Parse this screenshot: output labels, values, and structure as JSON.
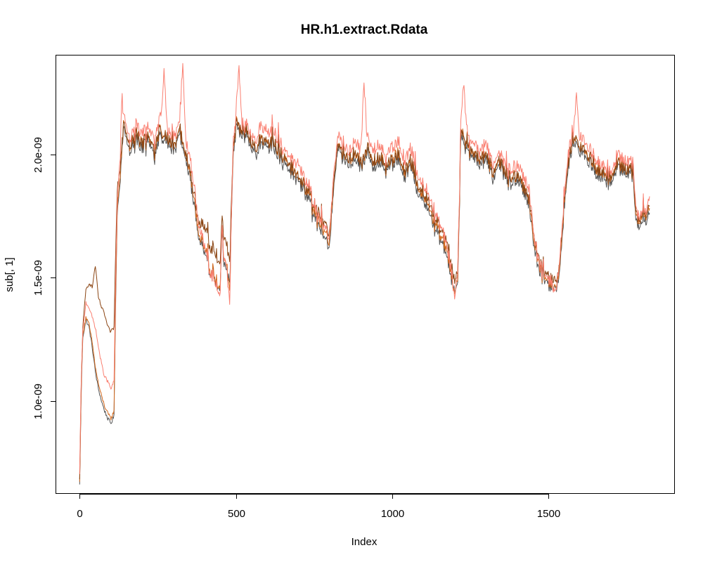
{
  "chart_data": {
    "type": "line",
    "title": "HR.h1.extract.Rdata",
    "xlabel": "Index",
    "ylabel": "sub[, 1]",
    "xlim": [
      -75,
      1905
    ],
    "ylim": [
      6.25e-10,
      2.4e-09
    ],
    "x_ticks": [
      0,
      500,
      1000,
      1500
    ],
    "x_tick_labels": [
      "0",
      "500",
      "1000",
      "1500"
    ],
    "y_ticks": [
      1e-09,
      1.5e-09,
      2e-09
    ],
    "y_tick_labels": [
      "1.0e-09",
      "1.5e-09",
      "2.0e-09"
    ],
    "grid": false,
    "legend": "none",
    "n_points": 1826,
    "series": [
      {
        "color": "#555555",
        "x": [
          0,
          5,
          10,
          20,
          30,
          40,
          50,
          60,
          70,
          80,
          90,
          100,
          110,
          115,
          120,
          130,
          140,
          150,
          160,
          180,
          200,
          220,
          240,
          260,
          280,
          300,
          320,
          330,
          340,
          350,
          360,
          370,
          380,
          390,
          400,
          410,
          420,
          430,
          440,
          450,
          455,
          460,
          470,
          480,
          490,
          500,
          520,
          540,
          560,
          580,
          600,
          620,
          640,
          660,
          680,
          700,
          720,
          740,
          760,
          780,
          800,
          810,
          820,
          830,
          840,
          860,
          880,
          900,
          920,
          940,
          960,
          980,
          1000,
          1020,
          1040,
          1060,
          1080,
          1100,
          1120,
          1140,
          1160,
          1180,
          1190,
          1200,
          1210,
          1215,
          1220,
          1240,
          1260,
          1280,
          1300,
          1320,
          1340,
          1360,
          1380,
          1400,
          1420,
          1440,
          1450,
          1460,
          1470,
          1480,
          1490,
          1500,
          1510,
          1520,
          1530,
          1540,
          1550,
          1560,
          1580,
          1600,
          1620,
          1640,
          1660,
          1680,
          1700,
          1720,
          1740,
          1750,
          1760,
          1770,
          1780,
          1790,
          1800,
          1810,
          1820,
          1825
        ],
        "y": [
          6.6e-10,
          1.05e-09,
          1.26e-09,
          1.33e-09,
          1.3e-09,
          1.22e-09,
          1.12e-09,
          1.05e-09,
          1e-09,
          9.6e-10,
          9.3e-10,
          9.1e-10,
          9.4e-10,
          1.4e-09,
          1.75e-09,
          1.9e-09,
          2.1e-09,
          2.05e-09,
          2e-09,
          2.06e-09,
          2.02e-09,
          2.05e-09,
          1.98e-09,
          2.08e-09,
          2.05e-09,
          2.02e-09,
          2.1e-09,
          2e-09,
          1.98e-09,
          1.92e-09,
          1.85e-09,
          1.75e-09,
          1.67e-09,
          1.64e-09,
          1.6e-09,
          1.55e-09,
          1.52e-09,
          1.49e-09,
          1.47e-09,
          1.44e-09,
          1.7e-09,
          1.58e-09,
          1.54e-09,
          1.46e-09,
          1.95e-09,
          2.1e-09,
          2.08e-09,
          2.05e-09,
          2e-09,
          2.05e-09,
          2.02e-09,
          2.03e-09,
          1.98e-09,
          1.95e-09,
          1.92e-09,
          1.88e-09,
          1.85e-09,
          1.8e-09,
          1.72e-09,
          1.66e-09,
          1.62e-09,
          1.82e-09,
          1.95e-09,
          2.02e-09,
          1.98e-09,
          1.95e-09,
          1.98e-09,
          1.95e-09,
          2e-09,
          1.95e-09,
          1.98e-09,
          1.92e-09,
          1.95e-09,
          1.98e-09,
          1.9e-09,
          1.95e-09,
          1.85e-09,
          1.82e-09,
          1.76e-09,
          1.7e-09,
          1.64e-09,
          1.56e-09,
          1.5e-09,
          1.43e-09,
          1.5e-09,
          1.75e-09,
          2.08e-09,
          2e-09,
          1.98e-09,
          1.95e-09,
          1.98e-09,
          1.9e-09,
          1.95e-09,
          1.92e-09,
          1.88e-09,
          1.9e-09,
          1.85e-09,
          1.78e-09,
          1.65e-09,
          1.58e-09,
          1.53e-09,
          1.5e-09,
          1.47e-09,
          1.48e-09,
          1.46e-09,
          1.45e-09,
          1.48e-09,
          1.58e-09,
          1.75e-09,
          1.92e-09,
          2.05e-09,
          2.02e-09,
          1.98e-09,
          1.95e-09,
          1.92e-09,
          1.9e-09,
          1.88e-09,
          1.95e-09,
          1.92e-09,
          1.9e-09,
          1.95e-09,
          1.92e-09,
          1.75e-09,
          1.7e-09,
          1.74e-09,
          1.72e-09,
          1.75e-09,
          1.76e-09
        ]
      },
      {
        "color": "#d2691e",
        "x": [
          0,
          5,
          10,
          20,
          30,
          40,
          50,
          60,
          70,
          80,
          90,
          100,
          110,
          115,
          120,
          130,
          140,
          150,
          160,
          180,
          200,
          220,
          240,
          260,
          280,
          300,
          320,
          330,
          340,
          350,
          360,
          370,
          380,
          390,
          400,
          410,
          420,
          430,
          440,
          450,
          455,
          460,
          470,
          480,
          490,
          500,
          520,
          540,
          560,
          580,
          600,
          620,
          640,
          660,
          680,
          700,
          720,
          740,
          760,
          780,
          800,
          810,
          820,
          830,
          840,
          860,
          880,
          900,
          920,
          940,
          960,
          980,
          1000,
          1020,
          1040,
          1060,
          1080,
          1100,
          1120,
          1140,
          1160,
          1180,
          1190,
          1200,
          1210,
          1215,
          1220,
          1240,
          1260,
          1280,
          1300,
          1320,
          1340,
          1360,
          1380,
          1400,
          1420,
          1440,
          1450,
          1460,
          1470,
          1480,
          1490,
          1500,
          1510,
          1520,
          1530,
          1540,
          1550,
          1560,
          1580,
          1600,
          1620,
          1640,
          1660,
          1680,
          1700,
          1720,
          1740,
          1750,
          1760,
          1770,
          1780,
          1790,
          1800,
          1810,
          1820,
          1825
        ],
        "y": [
          6.7e-10,
          1.06e-09,
          1.27e-09,
          1.34e-09,
          1.31e-09,
          1.24e-09,
          1.14e-09,
          1.07e-09,
          1.02e-09,
          9.8e-10,
          9.5e-10,
          9.3e-10,
          9.6e-10,
          1.42e-09,
          1.77e-09,
          1.92e-09,
          2.12e-09,
          2.07e-09,
          2.02e-09,
          2.08e-09,
          2.04e-09,
          2.07e-09,
          2e-09,
          2.1e-09,
          2.07e-09,
          2.04e-09,
          2.12e-09,
          2.02e-09,
          2e-09,
          1.94e-09,
          1.87e-09,
          1.77e-09,
          1.69e-09,
          1.66e-09,
          1.62e-09,
          1.57e-09,
          1.53e-09,
          1.5e-09,
          1.48e-09,
          1.45e-09,
          1.72e-09,
          1.6e-09,
          1.55e-09,
          1.43e-09,
          1.97e-09,
          2.12e-09,
          2.1e-09,
          2.07e-09,
          2.02e-09,
          2.07e-09,
          2.04e-09,
          2.05e-09,
          2e-09,
          1.97e-09,
          1.94e-09,
          1.9e-09,
          1.87e-09,
          1.82e-09,
          1.74e-09,
          1.68e-09,
          1.64e-09,
          1.84e-09,
          1.97e-09,
          2.04e-09,
          2e-09,
          1.97e-09,
          2e-09,
          1.97e-09,
          2.02e-09,
          1.97e-09,
          2e-09,
          1.94e-09,
          1.97e-09,
          2e-09,
          1.92e-09,
          1.97e-09,
          1.87e-09,
          1.84e-09,
          1.78e-09,
          1.72e-09,
          1.66e-09,
          1.58e-09,
          1.51e-09,
          1.42e-09,
          1.52e-09,
          1.77e-09,
          2.1e-09,
          2.02e-09,
          2e-09,
          1.97e-09,
          2e-09,
          1.92e-09,
          1.97e-09,
          1.94e-09,
          1.9e-09,
          1.92e-09,
          1.87e-09,
          1.8e-09,
          1.67e-09,
          1.6e-09,
          1.55e-09,
          1.51e-09,
          1.48e-09,
          1.49e-09,
          1.47e-09,
          1.45e-09,
          1.49e-09,
          1.6e-09,
          1.77e-09,
          1.94e-09,
          2.07e-09,
          2.04e-09,
          2e-09,
          1.97e-09,
          1.94e-09,
          1.92e-09,
          1.9e-09,
          1.97e-09,
          1.94e-09,
          1.92e-09,
          1.97e-09,
          1.94e-09,
          1.77e-09,
          1.72e-09,
          1.76e-09,
          1.74e-09,
          1.77e-09,
          1.78e-09
        ]
      },
      {
        "color": "#8b4513",
        "x": [
          0,
          5,
          10,
          20,
          30,
          40,
          50,
          60,
          70,
          80,
          90,
          100,
          110,
          115,
          120,
          130,
          140,
          150,
          160,
          180,
          200,
          220,
          240,
          260,
          280,
          300,
          320,
          330,
          340,
          350,
          360,
          370,
          380,
          390,
          400,
          410,
          420,
          430,
          440,
          450,
          455,
          460,
          470,
          480,
          490,
          500,
          520,
          540,
          560,
          580,
          600,
          620,
          640,
          660,
          680,
          700,
          720,
          740,
          760,
          780,
          800,
          810,
          820,
          830,
          840,
          860,
          880,
          900,
          920,
          940,
          960,
          980,
          1000,
          1020,
          1040,
          1060,
          1080,
          1100,
          1120,
          1140,
          1160,
          1180,
          1190,
          1200,
          1210,
          1215,
          1220,
          1240,
          1260,
          1280,
          1300,
          1320,
          1340,
          1360,
          1380,
          1400,
          1420,
          1440,
          1450,
          1460,
          1470,
          1480,
          1490,
          1500,
          1510,
          1520,
          1530,
          1540,
          1550,
          1560,
          1580,
          1600,
          1620,
          1640,
          1660,
          1680,
          1700,
          1720,
          1740,
          1750,
          1760,
          1770,
          1780,
          1790,
          1800,
          1810,
          1820,
          1825
        ],
        "y": [
          6.8e-10,
          1.08e-09,
          1.3e-09,
          1.45e-09,
          1.48e-09,
          1.46e-09,
          1.55e-09,
          1.42e-09,
          1.38e-09,
          1.35e-09,
          1.3e-09,
          1.28e-09,
          1.3e-09,
          1.6e-09,
          1.85e-09,
          1.95e-09,
          2.12e-09,
          2.07e-09,
          2.03e-09,
          2.08e-09,
          2.04e-09,
          2.07e-09,
          2.01e-09,
          2.1e-09,
          2.07e-09,
          2.04e-09,
          2.12e-09,
          2.03e-09,
          2e-09,
          1.95e-09,
          1.88e-09,
          1.8e-09,
          1.74e-09,
          1.72e-09,
          1.7e-09,
          1.66e-09,
          1.62e-09,
          1.6e-09,
          1.58e-09,
          1.55e-09,
          1.75e-09,
          1.68e-09,
          1.64e-09,
          1.55e-09,
          1.98e-09,
          2.12e-09,
          2.1e-09,
          2.07e-09,
          2.02e-09,
          2.07e-09,
          2.04e-09,
          2.05e-09,
          2e-09,
          1.97e-09,
          1.94e-09,
          1.9e-09,
          1.87e-09,
          1.83e-09,
          1.77e-09,
          1.72e-09,
          1.68e-09,
          1.85e-09,
          1.97e-09,
          2.04e-09,
          2e-09,
          1.97e-09,
          2e-09,
          1.97e-09,
          2.02e-09,
          1.97e-09,
          2e-09,
          1.94e-09,
          1.97e-09,
          2e-09,
          1.93e-09,
          1.97e-09,
          1.88e-09,
          1.85e-09,
          1.8e-09,
          1.74e-09,
          1.69e-09,
          1.62e-09,
          1.55e-09,
          1.47e-09,
          1.55e-09,
          1.78e-09,
          2.1e-09,
          2.02e-09,
          2e-09,
          1.97e-09,
          2e-09,
          1.93e-09,
          1.97e-09,
          1.94e-09,
          1.9e-09,
          1.92e-09,
          1.87e-09,
          1.81e-09,
          1.69e-09,
          1.62e-09,
          1.57e-09,
          1.53e-09,
          1.5e-09,
          1.51e-09,
          1.49e-09,
          1.48e-09,
          1.51e-09,
          1.62e-09,
          1.78e-09,
          1.94e-09,
          2.07e-09,
          2.04e-09,
          2e-09,
          1.97e-09,
          1.94e-09,
          1.92e-09,
          1.9e-09,
          1.97e-09,
          1.94e-09,
          1.92e-09,
          1.97e-09,
          1.94e-09,
          1.78e-09,
          1.73e-09,
          1.77e-09,
          1.75e-09,
          1.78e-09,
          1.79e-09
        ]
      },
      {
        "color": "#fa8072",
        "x": [
          0,
          5,
          10,
          20,
          30,
          40,
          50,
          60,
          70,
          80,
          90,
          100,
          110,
          115,
          120,
          130,
          135,
          140,
          150,
          160,
          180,
          200,
          220,
          240,
          260,
          270,
          280,
          300,
          320,
          330,
          340,
          350,
          360,
          370,
          380,
          390,
          400,
          410,
          420,
          430,
          440,
          450,
          455,
          460,
          470,
          480,
          490,
          500,
          510,
          520,
          540,
          560,
          580,
          600,
          620,
          640,
          660,
          680,
          700,
          720,
          740,
          760,
          780,
          800,
          810,
          820,
          830,
          840,
          860,
          880,
          900,
          910,
          920,
          940,
          960,
          980,
          1000,
          1020,
          1040,
          1060,
          1080,
          1100,
          1120,
          1140,
          1160,
          1180,
          1190,
          1200,
          1210,
          1215,
          1220,
          1230,
          1240,
          1260,
          1280,
          1300,
          1320,
          1340,
          1360,
          1380,
          1400,
          1420,
          1440,
          1450,
          1460,
          1470,
          1480,
          1490,
          1500,
          1510,
          1520,
          1530,
          1540,
          1550,
          1560,
          1580,
          1590,
          1600,
          1620,
          1640,
          1660,
          1680,
          1700,
          1720,
          1740,
          1750,
          1760,
          1770,
          1780,
          1790,
          1800,
          1810,
          1820,
          1825
        ],
        "y": [
          7e-10,
          1.1e-09,
          1.28e-09,
          1.4e-09,
          1.38e-09,
          1.34e-09,
          1.3e-09,
          1.22e-09,
          1.15e-09,
          1.1e-09,
          1.08e-09,
          1.05e-09,
          1.08e-09,
          1.5e-09,
          1.8e-09,
          2e-09,
          2.25e-09,
          2.15e-09,
          2.1e-09,
          2.05e-09,
          2.12e-09,
          2.08e-09,
          2.1e-09,
          2.05e-09,
          2.15e-09,
          2.35e-09,
          2.1e-09,
          2.08e-09,
          2.15e-09,
          2.35e-09,
          2.05e-09,
          2e-09,
          1.93e-09,
          1.82e-09,
          1.72e-09,
          1.68e-09,
          1.62e-09,
          1.56e-09,
          1.52e-09,
          1.48e-09,
          1.46e-09,
          1.42e-09,
          1.72e-09,
          1.6e-09,
          1.55e-09,
          1.38e-09,
          2e-09,
          2.15e-09,
          2.35e-09,
          2.12e-09,
          2.1e-09,
          2.05e-09,
          2.12e-09,
          2.08e-09,
          2.1e-09,
          2.04e-09,
          2e-09,
          1.98e-09,
          1.95e-09,
          1.9e-09,
          1.85e-09,
          1.76e-09,
          1.7e-09,
          1.66e-09,
          1.88e-09,
          2e-09,
          2.08e-09,
          2.04e-09,
          2e-09,
          2.05e-09,
          2.02e-09,
          2.3e-09,
          2.06e-09,
          2.02e-09,
          2.05e-09,
          1.98e-09,
          2.02e-09,
          2.05e-09,
          1.97e-09,
          2.02e-09,
          1.92e-09,
          1.88e-09,
          1.82e-09,
          1.76e-09,
          1.7e-09,
          1.6e-09,
          1.53e-09,
          1.4e-09,
          1.55e-09,
          1.8e-09,
          2.15e-09,
          2.28e-09,
          2.06e-09,
          2.04e-09,
          2e-09,
          2.04e-09,
          1.96e-09,
          2e-09,
          1.97e-09,
          1.93e-09,
          1.96e-09,
          1.91e-09,
          1.84e-09,
          1.7e-09,
          1.62e-09,
          1.56e-09,
          1.52e-09,
          1.49e-09,
          1.5e-09,
          1.48e-09,
          1.43e-09,
          1.5e-09,
          1.63e-09,
          1.8e-09,
          1.97e-09,
          2.1e-09,
          2.23e-09,
          2.08e-09,
          2.04e-09,
          2e-09,
          1.97e-09,
          1.95e-09,
          1.92e-09,
          2e-09,
          1.97e-09,
          1.95e-09,
          2e-09,
          1.97e-09,
          1.8e-09,
          1.74e-09,
          1.78e-09,
          1.76e-09,
          1.8e-09,
          1.82e-09
        ]
      }
    ]
  }
}
